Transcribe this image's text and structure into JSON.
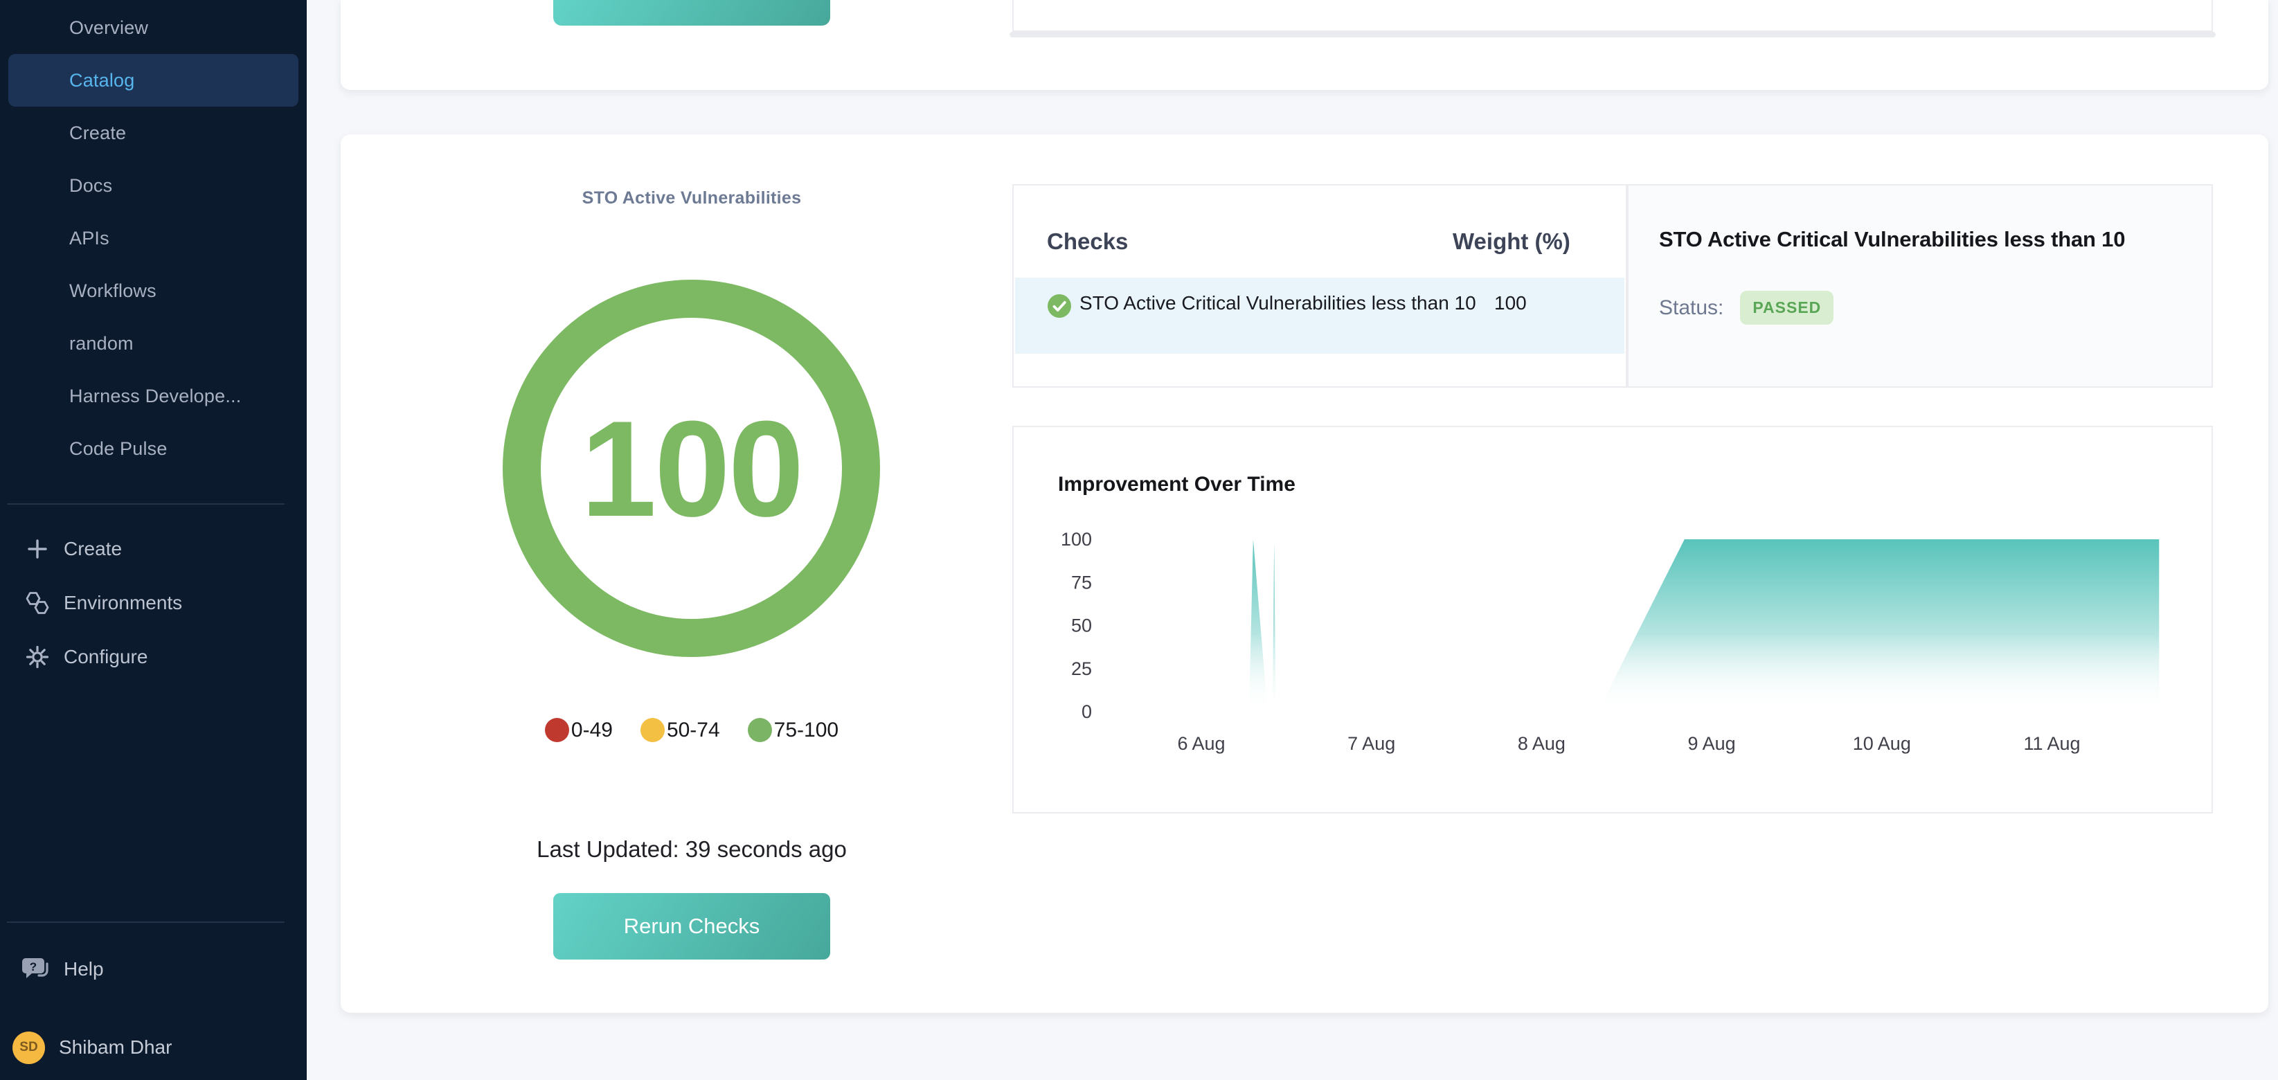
{
  "sidebar": {
    "nav_items": [
      {
        "label": "Overview",
        "active": false
      },
      {
        "label": "Catalog",
        "active": true
      },
      {
        "label": "Create",
        "active": false
      },
      {
        "label": "Docs",
        "active": false
      },
      {
        "label": "APIs",
        "active": false
      },
      {
        "label": "Workflows",
        "active": false
      },
      {
        "label": "random",
        "active": false
      },
      {
        "label": "Harness Develope...",
        "active": false
      },
      {
        "label": "Code Pulse",
        "active": false
      }
    ],
    "actions": [
      {
        "icon": "plus-icon",
        "label": "Create"
      },
      {
        "icon": "environments-icon",
        "label": "Environments"
      },
      {
        "icon": "gear-icon",
        "label": "Configure"
      }
    ],
    "help_label": "Help",
    "user": {
      "initials": "SD",
      "name": "Shibam Dhar"
    },
    "colors": {
      "active_bg": "#1d3356",
      "active_text": "#57b6ec"
    }
  },
  "scorecard": {
    "title": "STO Active Vulnerabilities",
    "score": "100",
    "score_color": "#7db963",
    "legend": [
      {
        "label": "0-49",
        "color": "#c0392f"
      },
      {
        "label": "50-74",
        "color": "#f4c043"
      },
      {
        "label": "75-100",
        "color": "#7cb465"
      }
    ],
    "last_updated": "Last Updated: 39 seconds ago",
    "rerun_button": "Rerun Checks",
    "button_gradient": [
      "#63d2c7",
      "#46a89a"
    ]
  },
  "checks": {
    "header_checks": "Checks",
    "header_weight": "Weight (%)",
    "rows": [
      {
        "name": "STO Active Critical Vulnerabilities less than 10",
        "weight": "100",
        "status": "passed"
      }
    ]
  },
  "check_detail": {
    "title": "STO Active Critical Vulnerabilities less than 10",
    "status_label": "Status:",
    "status_value": "PASSED",
    "badge_bg": "#d9eed0",
    "badge_text": "#5aa657"
  },
  "chart_data": {
    "type": "area",
    "title": "Improvement Over Time",
    "x_ticks": [
      "6 Aug",
      "7 Aug",
      "8 Aug",
      "9 Aug",
      "10 Aug",
      "11 Aug"
    ],
    "y_ticks": [
      0,
      25,
      50,
      75,
      100
    ],
    "ylim": [
      0,
      100
    ],
    "grid": false,
    "legend_position": "none",
    "area_color": "#4fc0b7",
    "series": [
      {
        "name": "score",
        "points_day_value": [
          [
            6.28,
            0
          ],
          [
            6.305,
            100
          ],
          [
            6.39,
            0
          ],
          [
            6.418,
            0
          ],
          [
            6.428,
            98
          ],
          [
            6.438,
            0
          ],
          [
            8.33,
            0
          ],
          [
            8.84,
            100
          ],
          [
            11.63,
            100
          ]
        ]
      }
    ]
  }
}
